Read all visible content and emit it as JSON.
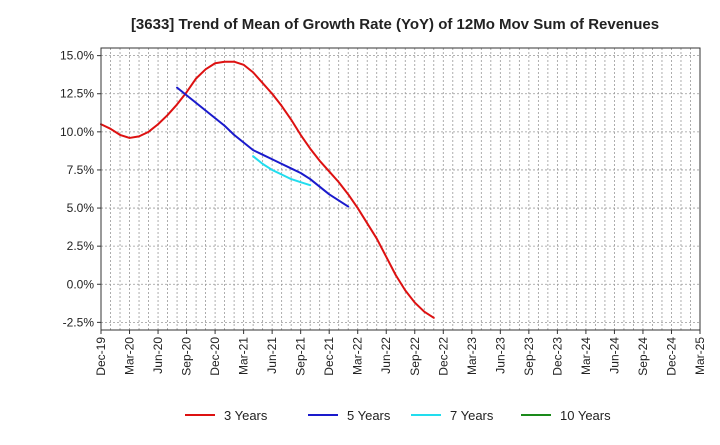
{
  "chart_data": {
    "type": "line",
    "title": "[3633]  Trend of Mean of Growth Rate (YoY) of 12Mo Mov Sum of Revenues",
    "xlabel": "",
    "ylabel": "",
    "ylim": [
      -3.0,
      15.5
    ],
    "x_ticks": [
      "Dec-19",
      "Mar-20",
      "Jun-20",
      "Sep-20",
      "Dec-20",
      "Mar-21",
      "Jun-21",
      "Sep-21",
      "Dec-21",
      "Mar-22",
      "Jun-22",
      "Sep-22",
      "Dec-22",
      "Mar-23",
      "Jun-23",
      "Sep-23",
      "Dec-23",
      "Mar-24",
      "Jun-24",
      "Sep-24",
      "Dec-24",
      "Mar-25"
    ],
    "y_ticks": [
      -2.5,
      0.0,
      2.5,
      5.0,
      7.5,
      10.0,
      12.5,
      15.0
    ],
    "y_tick_labels": [
      "-2.5%",
      "0.0%",
      "2.5%",
      "5.0%",
      "7.5%",
      "10.0%",
      "12.5%",
      "15.0%"
    ],
    "grid": true,
    "legend_position": "bottom",
    "series": [
      {
        "name": "3 Years",
        "color": "#dd1111",
        "start_index": 0,
        "values": [
          10.5,
          10.2,
          9.8,
          9.6,
          9.7,
          10.0,
          10.5,
          11.1,
          11.8,
          12.6,
          13.5,
          14.1,
          14.5,
          14.6,
          14.6,
          14.4,
          13.9,
          13.2,
          12.5,
          11.7,
          10.8,
          9.8,
          8.9,
          8.1,
          7.4,
          6.7,
          5.9,
          5.0,
          4.0,
          3.0,
          1.8,
          0.6,
          -0.4,
          -1.2,
          -1.8,
          -2.2
        ]
      },
      {
        "name": "5 Years",
        "color": "#1a1acc",
        "start_index": 8,
        "values": [
          12.9,
          12.4,
          11.9,
          11.4,
          10.9,
          10.4,
          9.8,
          9.3,
          8.8,
          8.5,
          8.2,
          7.9,
          7.6,
          7.3,
          6.9,
          6.4,
          5.9,
          5.5,
          5.1
        ]
      },
      {
        "name": "7 Years",
        "color": "#22ddee",
        "start_index": 16,
        "values": [
          8.4,
          7.9,
          7.5,
          7.2,
          6.9,
          6.7,
          6.5
        ]
      },
      {
        "name": "10 Years",
        "color": "#1a8a1a",
        "start_index": 0,
        "values": []
      }
    ]
  }
}
